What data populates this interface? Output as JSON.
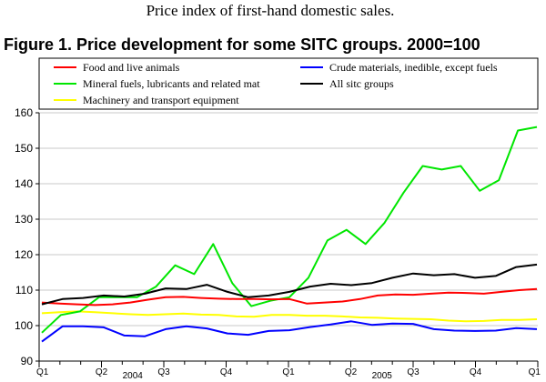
{
  "header": {
    "subtitle": "Price index of first-hand domestic sales.",
    "title": "Figure 1. Price development for some SITC groups. 2000=100"
  },
  "chart_data": {
    "type": "line",
    "title": "Figure 1. Price development for some SITC groups. 2000=100",
    "ylim": [
      90,
      160
    ],
    "y_ticks": [
      90,
      100,
      110,
      120,
      130,
      140,
      150,
      160
    ],
    "x_tick_labels": [
      "Q1",
      "Q2",
      "Q3",
      "Q4",
      "Q1",
      "Q2",
      "Q3",
      "Q4",
      "Q1"
    ],
    "year_labels": [
      "2004",
      "2005"
    ],
    "grid": true,
    "series": [
      {
        "name": "Food and live animals",
        "color": "#ff0000",
        "values": [
          106.5,
          106.2,
          106.0,
          105.8,
          106.0,
          106.5,
          107.3,
          108.0,
          108.1,
          107.8,
          107.6,
          107.5,
          107.5,
          107.4,
          107.5,
          106.2,
          106.5,
          106.8,
          107.5,
          108.5,
          108.8,
          108.7,
          109.0,
          109.3,
          109.2,
          109.0,
          109.5,
          110.0,
          110.3
        ]
      },
      {
        "name": "Mineral fuels, lubricants and related mat",
        "color": "#00e600",
        "values": [
          98.0,
          103.0,
          104.0,
          108.0,
          108.0,
          108.0,
          111.0,
          117.0,
          114.5,
          123.0,
          112.0,
          105.5,
          107.0,
          108.0,
          113.5,
          124.0,
          127.0,
          123.0,
          129.0,
          137.5,
          145.0,
          144.0,
          145.0,
          138.0,
          141.0,
          155.0,
          156.0
        ]
      },
      {
        "name": "Machinery and transport equipment",
        "color": "#ffff00",
        "values": [
          103.5,
          103.8,
          104.0,
          103.8,
          103.5,
          103.2,
          103.0,
          103.2,
          103.4,
          103.1,
          103.0,
          102.6,
          102.5,
          103.0,
          103.0,
          102.8,
          102.8,
          102.6,
          102.3,
          102.2,
          102.0,
          101.9,
          101.8,
          101.4,
          101.2,
          101.3,
          101.6,
          101.6,
          101.8
        ]
      },
      {
        "name": "Crude materials, inedible, except fuels",
        "color": "#0000ff",
        "values": [
          95.5,
          99.8,
          99.8,
          99.5,
          97.2,
          97.0,
          99.0,
          99.8,
          99.2,
          97.8,
          97.4,
          98.5,
          98.7,
          99.6,
          100.3,
          101.2,
          100.2,
          100.6,
          100.5,
          99.0,
          98.6,
          98.5,
          98.6,
          99.3,
          99.0
        ]
      },
      {
        "name": "All sitc groups",
        "color": "#000000",
        "values": [
          106.0,
          107.5,
          107.8,
          108.5,
          108.2,
          109.0,
          110.5,
          110.3,
          111.5,
          109.5,
          108.0,
          108.5,
          109.5,
          111.0,
          111.8,
          111.4,
          112.0,
          113.5,
          114.7,
          114.2,
          114.5,
          113.5,
          114.0,
          116.5,
          117.2
        ]
      }
    ],
    "legend_order": [
      "Food and live animals",
      "Crude materials, inedible, except fuels",
      "Mineral fuels, lubricants and related mat",
      "All sitc groups",
      "Machinery and transport equipment"
    ]
  }
}
